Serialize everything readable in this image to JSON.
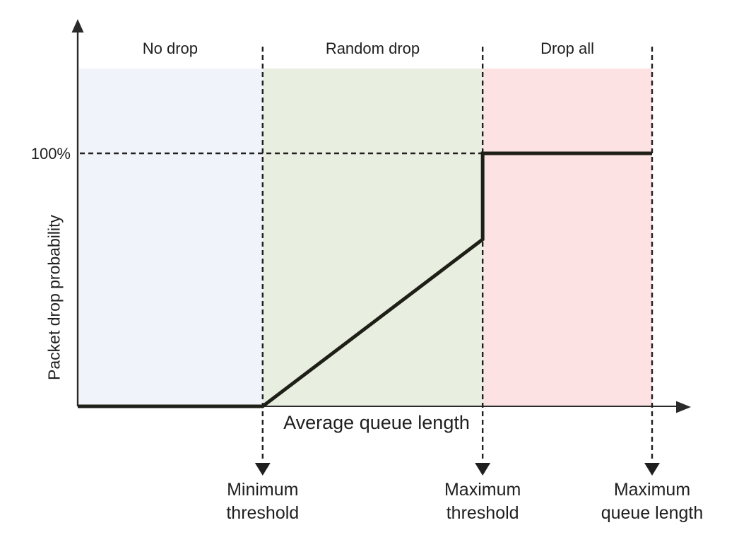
{
  "chart_data": {
    "type": "line",
    "title": "",
    "xlabel": "Average queue length",
    "ylabel": "Packet drop probability",
    "x_range": [
      0,
      1
    ],
    "y_range": [
      0,
      1
    ],
    "grid": "off",
    "legend": "none",
    "y_axis": {
      "tick_label": "100%",
      "tick_value": 1.0
    },
    "regions": [
      {
        "label": "No drop",
        "from": 0.0,
        "to": 0.322,
        "color": "#f0f4fa"
      },
      {
        "label": "Random drop",
        "from": 0.322,
        "to": 0.705,
        "color": "#e8efe1"
      },
      {
        "label": "Drop all",
        "from": 0.705,
        "to": 1.0,
        "color": "#fde2e4"
      }
    ],
    "markers": [
      {
        "x": 0.322,
        "label": "Minimum threshold",
        "lines": [
          "Minimum",
          "threshold"
        ]
      },
      {
        "x": 0.705,
        "label": "Maximum threshold",
        "lines": [
          "Maximum",
          "threshold"
        ]
      },
      {
        "x": 1.0,
        "label": "Maximum queue length",
        "lines": [
          "Maximum",
          "queue length"
        ]
      }
    ],
    "guides": [
      {
        "type": "horizontal-dashed",
        "at_probability": 1.0,
        "from_x": 0.0,
        "to_x": 0.705
      },
      {
        "type": "vertical-dashed",
        "at_x": 0.322
      },
      {
        "type": "vertical-dashed",
        "at_x": 0.705
      },
      {
        "type": "vertical-dashed",
        "at_x": 1.0
      }
    ],
    "series": [
      {
        "name": "Packet drop probability",
        "points": [
          [
            0,
            0
          ],
          [
            0.322,
            0
          ],
          [
            0.705,
            0.66
          ],
          [
            0.705,
            1.0
          ],
          [
            1.0,
            1.0
          ]
        ]
      }
    ],
    "style": {
      "axis_color": "#2a2a2a",
      "guide_color": "#1f1f1f",
      "line_color": "#1e1f17"
    }
  }
}
